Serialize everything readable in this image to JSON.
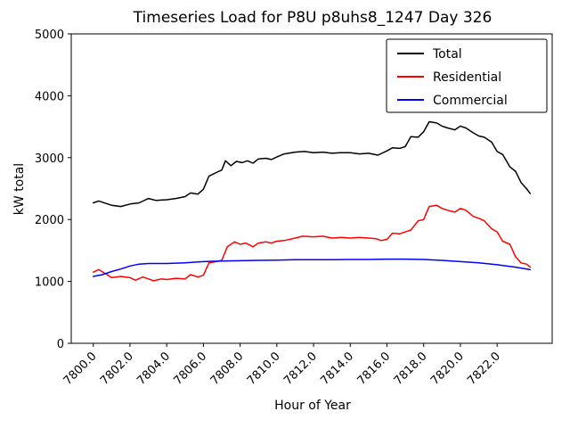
{
  "chart_data": {
    "type": "line",
    "title": "Timeseries Load for P8U p8uhs8_1247  Day 326",
    "xlabel": "Hour of Year",
    "ylabel": "kW total",
    "xlim": [
      7798.8,
      7825.0
    ],
    "ylim": [
      0,
      5000
    ],
    "x_ticks": [
      7800,
      7802,
      7804,
      7806,
      7808,
      7810,
      7812,
      7814,
      7816,
      7818,
      7820,
      7822
    ],
    "y_ticks": [
      0,
      1000,
      2000,
      3000,
      4000,
      5000
    ],
    "grid": false,
    "legend_position": "upper right",
    "axis_color": "#000000",
    "background_color": "#ffffff",
    "series": [
      {
        "name": "Total",
        "color": "#000000",
        "points": [
          [
            7800.0,
            2270
          ],
          [
            7800.3,
            2300
          ],
          [
            7801.0,
            2230
          ],
          [
            7801.5,
            2210
          ],
          [
            7802.0,
            2250
          ],
          [
            7802.5,
            2270
          ],
          [
            7803.0,
            2340
          ],
          [
            7803.4,
            2310
          ],
          [
            7804.0,
            2320
          ],
          [
            7804.5,
            2340
          ],
          [
            7805.0,
            2370
          ],
          [
            7805.3,
            2430
          ],
          [
            7805.7,
            2410
          ],
          [
            7806.0,
            2490
          ],
          [
            7806.3,
            2700
          ],
          [
            7806.7,
            2760
          ],
          [
            7807.0,
            2800
          ],
          [
            7807.2,
            2950
          ],
          [
            7807.5,
            2870
          ],
          [
            7807.8,
            2940
          ],
          [
            7808.1,
            2920
          ],
          [
            7808.4,
            2950
          ],
          [
            7808.7,
            2910
          ],
          [
            7809.0,
            2980
          ],
          [
            7809.4,
            2990
          ],
          [
            7809.7,
            2970
          ],
          [
            7810.0,
            3010
          ],
          [
            7810.4,
            3060
          ],
          [
            7811.0,
            3090
          ],
          [
            7811.5,
            3100
          ],
          [
            7812.0,
            3080
          ],
          [
            7812.5,
            3090
          ],
          [
            7813.0,
            3070
          ],
          [
            7813.5,
            3080
          ],
          [
            7814.0,
            3080
          ],
          [
            7814.5,
            3060
          ],
          [
            7815.0,
            3070
          ],
          [
            7815.5,
            3040
          ],
          [
            7816.0,
            3110
          ],
          [
            7816.3,
            3160
          ],
          [
            7816.7,
            3150
          ],
          [
            7817.0,
            3180
          ],
          [
            7817.3,
            3340
          ],
          [
            7817.7,
            3330
          ],
          [
            7818.0,
            3420
          ],
          [
            7818.3,
            3580
          ],
          [
            7818.7,
            3560
          ],
          [
            7819.0,
            3510
          ],
          [
            7819.3,
            3480
          ],
          [
            7819.7,
            3450
          ],
          [
            7820.0,
            3510
          ],
          [
            7820.3,
            3480
          ],
          [
            7820.7,
            3400
          ],
          [
            7821.0,
            3350
          ],
          [
            7821.3,
            3330
          ],
          [
            7821.7,
            3250
          ],
          [
            7822.0,
            3100
          ],
          [
            7822.3,
            3050
          ],
          [
            7822.7,
            2850
          ],
          [
            7823.0,
            2780
          ],
          [
            7823.3,
            2600
          ],
          [
            7823.6,
            2500
          ],
          [
            7823.8,
            2420
          ]
        ]
      },
      {
        "name": "Residential",
        "color": "#ff0000",
        "points": [
          [
            7800.0,
            1150
          ],
          [
            7800.3,
            1190
          ],
          [
            7800.7,
            1120
          ],
          [
            7801.0,
            1060
          ],
          [
            7801.5,
            1080
          ],
          [
            7802.0,
            1060
          ],
          [
            7802.3,
            1020
          ],
          [
            7802.7,
            1070
          ],
          [
            7803.0,
            1040
          ],
          [
            7803.3,
            1010
          ],
          [
            7803.7,
            1040
          ],
          [
            7804.0,
            1030
          ],
          [
            7804.5,
            1050
          ],
          [
            7805.0,
            1040
          ],
          [
            7805.3,
            1110
          ],
          [
            7805.7,
            1070
          ],
          [
            7806.0,
            1100
          ],
          [
            7806.3,
            1300
          ],
          [
            7806.7,
            1320
          ],
          [
            7807.0,
            1340
          ],
          [
            7807.3,
            1560
          ],
          [
            7807.7,
            1640
          ],
          [
            7808.0,
            1600
          ],
          [
            7808.3,
            1620
          ],
          [
            7808.7,
            1560
          ],
          [
            7809.0,
            1620
          ],
          [
            7809.4,
            1640
          ],
          [
            7809.7,
            1620
          ],
          [
            7810.0,
            1650
          ],
          [
            7810.4,
            1660
          ],
          [
            7811.0,
            1700
          ],
          [
            7811.4,
            1730
          ],
          [
            7812.0,
            1720
          ],
          [
            7812.5,
            1730
          ],
          [
            7813.0,
            1700
          ],
          [
            7813.5,
            1710
          ],
          [
            7814.0,
            1700
          ],
          [
            7814.5,
            1710
          ],
          [
            7815.0,
            1700
          ],
          [
            7815.4,
            1690
          ],
          [
            7815.7,
            1660
          ],
          [
            7816.0,
            1680
          ],
          [
            7816.3,
            1780
          ],
          [
            7816.7,
            1770
          ],
          [
            7817.0,
            1800
          ],
          [
            7817.3,
            1830
          ],
          [
            7817.7,
            1980
          ],
          [
            7818.0,
            2000
          ],
          [
            7818.3,
            2210
          ],
          [
            7818.7,
            2230
          ],
          [
            7819.0,
            2180
          ],
          [
            7819.3,
            2150
          ],
          [
            7819.7,
            2120
          ],
          [
            7820.0,
            2180
          ],
          [
            7820.3,
            2150
          ],
          [
            7820.7,
            2050
          ],
          [
            7821.0,
            2020
          ],
          [
            7821.3,
            1980
          ],
          [
            7821.7,
            1850
          ],
          [
            7822.0,
            1800
          ],
          [
            7822.3,
            1650
          ],
          [
            7822.7,
            1600
          ],
          [
            7823.0,
            1400
          ],
          [
            7823.3,
            1300
          ],
          [
            7823.6,
            1280
          ],
          [
            7823.8,
            1230
          ]
        ]
      },
      {
        "name": "Commercial",
        "color": "#0000ff",
        "points": [
          [
            7800.0,
            1080
          ],
          [
            7800.5,
            1110
          ],
          [
            7801.0,
            1160
          ],
          [
            7801.5,
            1200
          ],
          [
            7802.0,
            1250
          ],
          [
            7802.5,
            1280
          ],
          [
            7803.0,
            1290
          ],
          [
            7804.0,
            1290
          ],
          [
            7805.0,
            1300
          ],
          [
            7806.0,
            1320
          ],
          [
            7807.0,
            1330
          ],
          [
            7808.0,
            1335
          ],
          [
            7809.0,
            1340
          ],
          [
            7810.0,
            1345
          ],
          [
            7811.0,
            1350
          ],
          [
            7812.0,
            1350
          ],
          [
            7813.0,
            1350
          ],
          [
            7814.0,
            1355
          ],
          [
            7815.0,
            1355
          ],
          [
            7816.0,
            1360
          ],
          [
            7817.0,
            1360
          ],
          [
            7818.0,
            1355
          ],
          [
            7819.0,
            1340
          ],
          [
            7820.0,
            1320
          ],
          [
            7821.0,
            1300
          ],
          [
            7822.0,
            1270
          ],
          [
            7823.0,
            1230
          ],
          [
            7823.8,
            1190
          ]
        ]
      }
    ]
  }
}
